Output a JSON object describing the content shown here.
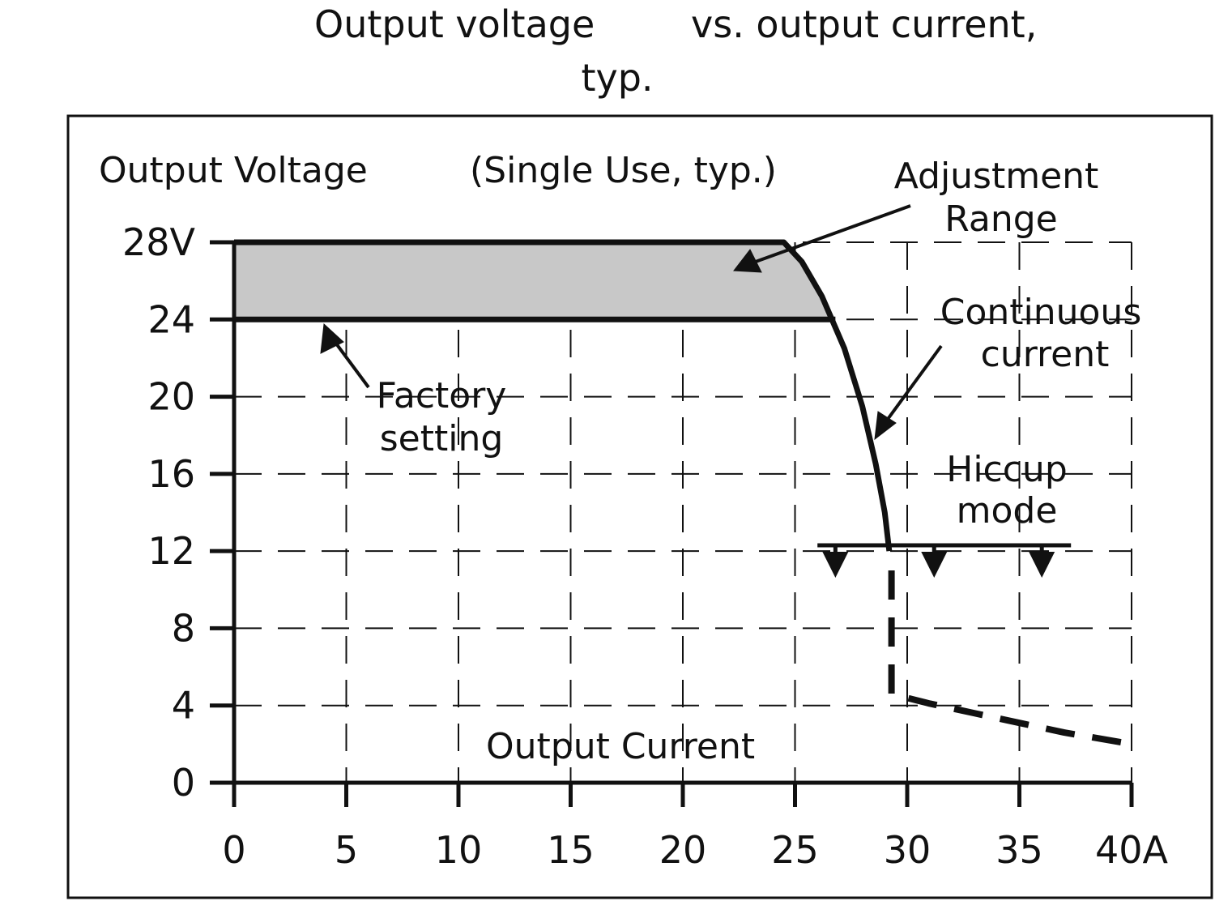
{
  "title": {
    "line1_left": "Output voltage",
    "line1_right": "vs. output current,",
    "line2": "typ."
  },
  "chart_data": {
    "type": "line",
    "ylabel": "Output Voltage",
    "subtitle": "(Single Use, typ.)",
    "xlabel": "Output Current",
    "xlim": [
      0,
      40
    ],
    "ylim": [
      0,
      28
    ],
    "x_ticks": [
      0,
      5,
      10,
      15,
      20,
      25,
      30,
      35,
      40
    ],
    "x_tick_labels": [
      "0",
      "5",
      "10",
      "15",
      "20",
      "25",
      "30",
      "35",
      "40A"
    ],
    "y_ticks": [
      0,
      4,
      8,
      12,
      16,
      20,
      24,
      28
    ],
    "y_tick_labels": [
      "0",
      "4",
      "8",
      "12",
      "16",
      "20",
      "24",
      "28V"
    ],
    "grid": true,
    "series": [
      {
        "name": "28V",
        "style": "solid",
        "x": [
          0,
          24.5,
          25.3,
          26.2,
          27.2,
          28.0,
          28.6,
          29.0,
          29.2
        ],
        "y": [
          28,
          28,
          27.0,
          25.2,
          22.5,
          19.5,
          16.5,
          14.0,
          12.0
        ]
      },
      {
        "name": "24",
        "style": "solid",
        "x": [
          0,
          26.8
        ],
        "y": [
          24,
          24
        ]
      },
      {
        "name": "Hiccup mode",
        "style": "dashed",
        "x": [
          29.3,
          29.3,
          29.3,
          31,
          33,
          35,
          37,
          40
        ],
        "y": [
          11.0,
          6.0,
          4.6,
          4.1,
          3.6,
          3.1,
          2.6,
          2.0
        ]
      }
    ],
    "shaded_region": {
      "x": [
        0,
        26.8
      ],
      "y": [
        24,
        28
      ],
      "color": "#c8c8c8"
    },
    "hiccup_level": {
      "x": [
        26.0,
        37.3
      ],
      "y": 12.3
    },
    "hiccup_arrows_x": [
      26.8,
      31.2,
      36.0
    ],
    "annotations": [
      {
        "id": "adjustment",
        "lines": [
          "Adjustment",
          "Range"
        ]
      },
      {
        "id": "factory",
        "lines": [
          "Factory",
          "setting"
        ]
      },
      {
        "id": "continuous",
        "lines": [
          "Continuous",
          "current"
        ]
      },
      {
        "id": "hiccup",
        "lines": [
          "Hiccup",
          "mode"
        ]
      }
    ]
  },
  "colors": {
    "line": "#111111",
    "grid": "#111111",
    "fill": "#c8c8c8",
    "frame": "#111111"
  }
}
